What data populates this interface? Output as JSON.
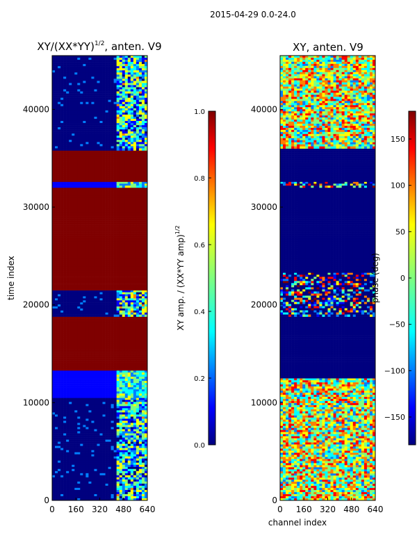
{
  "figure": {
    "suptitle": "2015-04-29 0.0-24.0"
  },
  "colors": {
    "jet": [
      "#00007f",
      "#0000ff",
      "#007fff",
      "#00ffff",
      "#7fff7f",
      "#ffff00",
      "#ff7f00",
      "#ff0000",
      "#7f0000"
    ],
    "dark_red": "#7f0000",
    "dark_blue": "#00007f"
  },
  "chart_data": [
    {
      "type": "heatmap",
      "title_main": "XY/(XX*YY)",
      "title_exp": "1/2",
      "title_tail": ", anten. V9",
      "xlabel": "",
      "ylabel": "time index",
      "xlim": [
        0,
        640
      ],
      "ylim": [
        0,
        45500
      ],
      "xticks": [
        "0",
        "160",
        "320",
        "480",
        "640"
      ],
      "yticks": [
        "0",
        "10000",
        "20000",
        "30000",
        "40000"
      ],
      "colorbar": {
        "label_main": "XY amp. / (XX*YY amp)",
        "label_exp": "1/2",
        "range": [
          0.0,
          1.0
        ],
        "ticks": [
          "0.0",
          "0.2",
          "0.4",
          "0.6",
          "0.8",
          "1.0"
        ]
      },
      "bands": [
        {
          "from": 0,
          "to": 10500,
          "value": 0.05,
          "kind": "low-noisy"
        },
        {
          "from": 10500,
          "to": 13300,
          "value": 0.15,
          "kind": "mid"
        },
        {
          "from": 13300,
          "to": 18800,
          "value": 1.0,
          "kind": "saturated"
        },
        {
          "from": 18800,
          "to": 21500,
          "value": 0.05,
          "kind": "low-noisy"
        },
        {
          "from": 21500,
          "to": 23300,
          "value": 1.0,
          "kind": "saturated"
        },
        {
          "from": 23300,
          "to": 32000,
          "value": 1.0,
          "kind": "saturated"
        },
        {
          "from": 32000,
          "to": 32600,
          "value": 0.1,
          "kind": "mid"
        },
        {
          "from": 32600,
          "to": 35800,
          "value": 1.0,
          "kind": "saturated"
        },
        {
          "from": 35800,
          "to": 45500,
          "value": 0.05,
          "kind": "low-noisy"
        }
      ]
    },
    {
      "type": "heatmap",
      "title_main": "XY, anten. V9",
      "xlabel": "channel index",
      "ylabel": "",
      "xlim": [
        0,
        640
      ],
      "ylim": [
        0,
        45500
      ],
      "xticks": [
        "0",
        "160",
        "320",
        "480",
        "640"
      ],
      "yticks": [
        "0",
        "10000",
        "20000",
        "30000",
        "40000"
      ],
      "colorbar": {
        "label": "phase (deg)",
        "range": [
          -180,
          180
        ],
        "ticks": [
          "−150",
          "−100",
          "−50",
          "0",
          "50",
          "100",
          "150"
        ]
      },
      "bands": [
        {
          "from": 0,
          "to": 12500,
          "value": 0,
          "kind": "phase-noisy"
        },
        {
          "from": 12500,
          "to": 18800,
          "value": -180,
          "kind": "flat"
        },
        {
          "from": 18800,
          "to": 23300,
          "value": 0,
          "kind": "phase-mixed"
        },
        {
          "from": 23300,
          "to": 32000,
          "value": -180,
          "kind": "flat"
        },
        {
          "from": 32000,
          "to": 32600,
          "value": 0,
          "kind": "phase-mixed"
        },
        {
          "from": 32600,
          "to": 36000,
          "value": -180,
          "kind": "flat"
        },
        {
          "from": 36000,
          "to": 45500,
          "value": 0,
          "kind": "phase-noisy"
        }
      ]
    }
  ]
}
